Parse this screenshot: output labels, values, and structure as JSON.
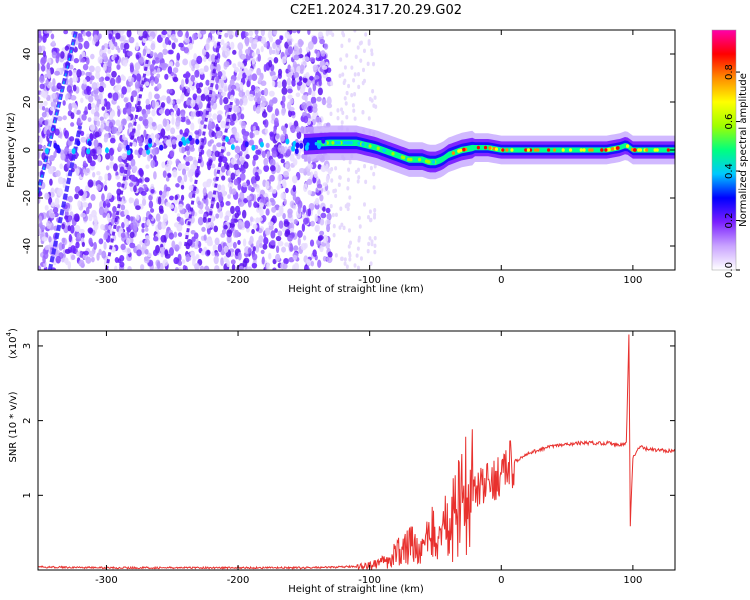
{
  "title": "C2E1.2024.317.20.29.G02",
  "chart_data": [
    {
      "type": "heatmap",
      "title": "C2E1.2024.317.20.29.G02",
      "xlabel": "Height of straight line (km)",
      "ylabel": "Frequency (Hz)",
      "xlim": [
        -352,
        132
      ],
      "ylim": [
        -50,
        50
      ],
      "xticks": [
        -300,
        -200,
        -100,
        0,
        100
      ],
      "yticks": [
        -40,
        -20,
        0,
        20,
        40
      ],
      "colorbar": {
        "label": "Normalized spectral amplitude",
        "range": [
          0.0,
          0.97
        ],
        "ticks": [
          0.0,
          0.2,
          0.4,
          0.6,
          0.8
        ],
        "colors": [
          "#ffffff",
          "#c9a3ff",
          "#7a1fff",
          "#0000ff",
          "#00c8ff",
          "#00ff7f",
          "#9fff00",
          "#ffff00",
          "#ff8c00",
          "#ff0000",
          "#ff00aa"
        ]
      },
      "noise_region": {
        "x": [
          -352,
          -130
        ],
        "y": [
          -50,
          50
        ]
      },
      "echo_trace": {
        "x": [
          -352,
          -300,
          -250,
          -200,
          -160,
          -130,
          -110,
          -95,
          -80,
          -70,
          -60,
          -55,
          -50,
          -45,
          -40,
          -30,
          -20,
          -10,
          0,
          20,
          50,
          80,
          90,
          95,
          100,
          110,
          132
        ],
        "y": [
          2,
          2,
          2,
          2,
          2,
          3,
          3,
          1,
          -2,
          -4,
          -4,
          -5,
          -5,
          -4,
          -2,
          0,
          1,
          1,
          0,
          0,
          0,
          0,
          1,
          2,
          0,
          0,
          0
        ]
      },
      "streaks": [
        {
          "x": [
            -352,
            -323
          ],
          "y": [
            -18,
            50
          ]
        },
        {
          "x": [
            -343,
            -320
          ],
          "y": [
            -50,
            10
          ]
        },
        {
          "x": [
            -300,
            -268
          ],
          "y": [
            -50,
            40
          ]
        },
        {
          "x": [
            -240,
            -213
          ],
          "y": [
            -40,
            50
          ]
        },
        {
          "x": [
            -222,
            -205
          ],
          "y": [
            -30,
            20
          ]
        }
      ]
    },
    {
      "type": "line",
      "xlabel": "Height of straight line (km)",
      "ylabel": "SNR (10 * v/v)",
      "y_multiplier": "(x10",
      "y_multiplier_exp": "4",
      "xlim": [
        -352,
        132
      ],
      "ylim": [
        0,
        3.2
      ],
      "xticks": [
        -300,
        -200,
        -100,
        0,
        100
      ],
      "yticks": [
        1,
        2,
        3
      ],
      "series": [
        {
          "color": "#e8312e",
          "x": [
            -352,
            -300,
            -200,
            -150,
            -120,
            -100,
            -90,
            -80,
            -70,
            -60,
            -50,
            -40,
            -30,
            -20,
            -10,
            0,
            10,
            20,
            30,
            40,
            50,
            60,
            70,
            80,
            90,
            95,
            97,
            98,
            100,
            105,
            110,
            120,
            132
          ],
          "y": [
            0.04,
            0.03,
            0.03,
            0.03,
            0.04,
            0.06,
            0.1,
            0.2,
            0.3,
            0.35,
            0.45,
            0.6,
            0.9,
            1.05,
            1.15,
            1.3,
            1.45,
            1.55,
            1.62,
            1.66,
            1.68,
            1.7,
            1.7,
            1.7,
            1.68,
            1.7,
            3.15,
            0.6,
            1.5,
            1.65,
            1.62,
            1.6,
            1.6
          ]
        }
      ]
    }
  ]
}
